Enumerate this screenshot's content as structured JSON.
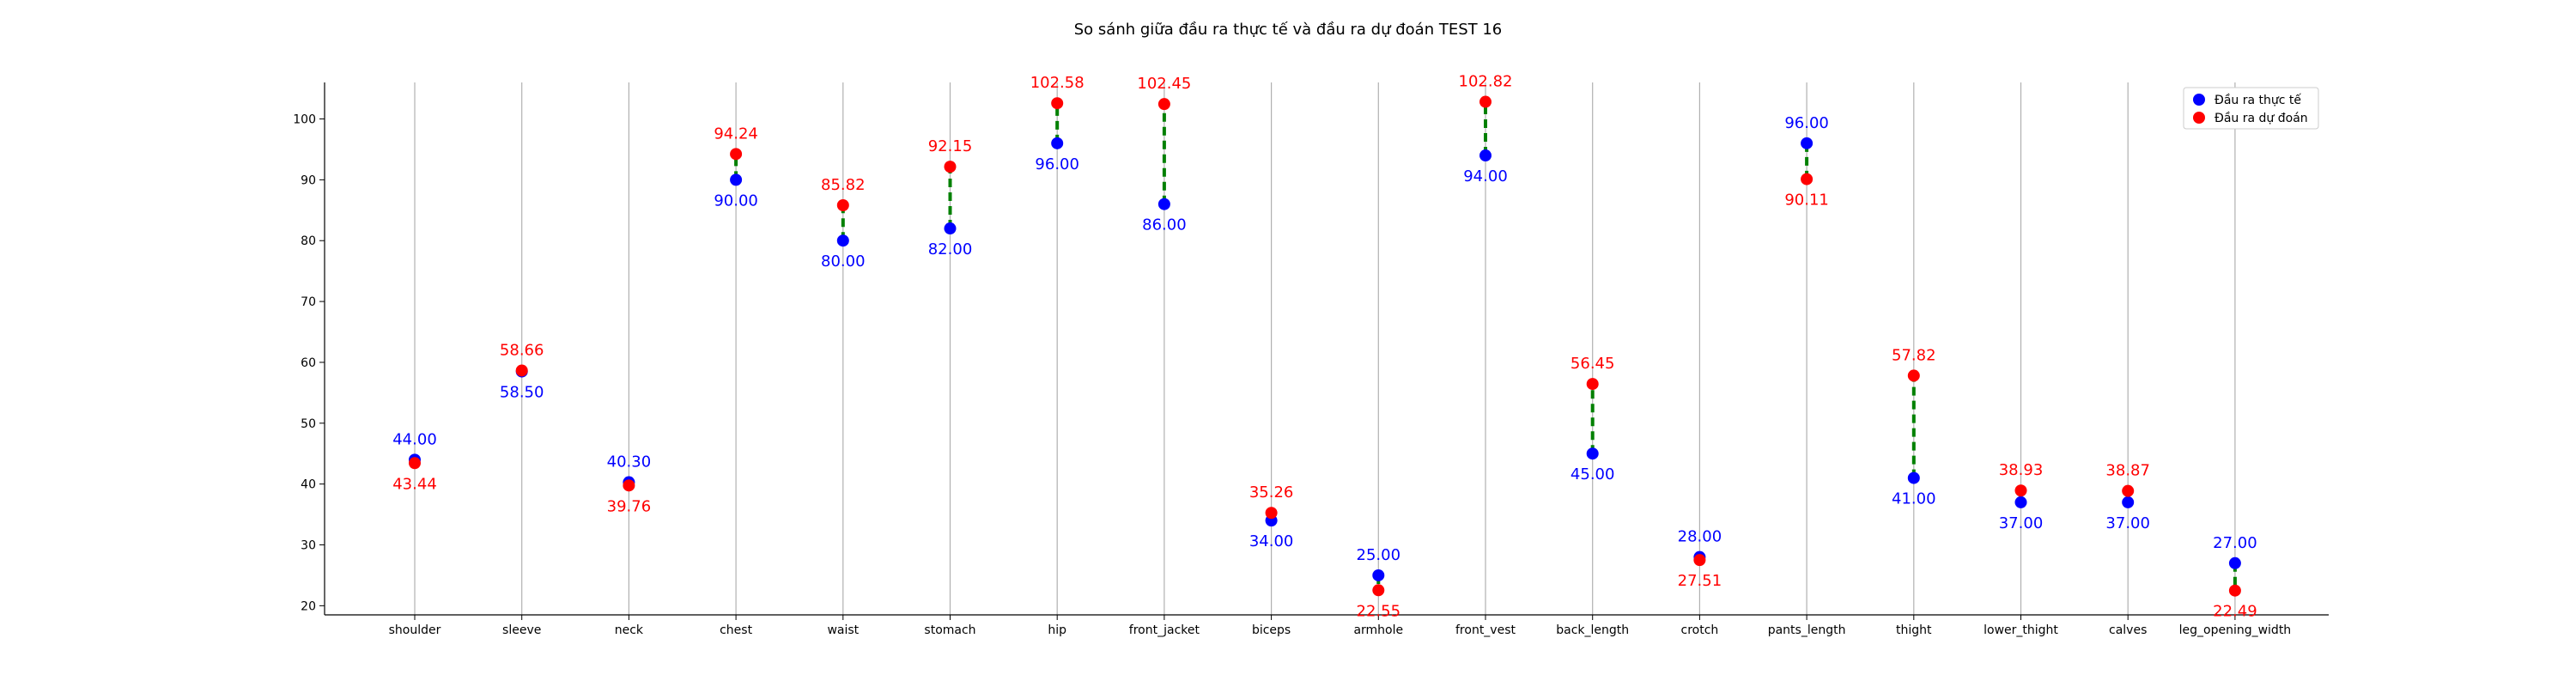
{
  "chart_data": {
    "type": "scatter",
    "title": "So sánh giữa đầu ra thực tế và đầu ra dự đoán TEST 16",
    "xlabel": "",
    "ylabel": "",
    "categories": [
      "shoulder",
      "sleeve",
      "neck",
      "chest",
      "waist",
      "stomach",
      "hip",
      "front_jacket",
      "biceps",
      "armhole",
      "front_vest",
      "back_length",
      "crotch",
      "pants_length",
      "thight",
      "lower_thight",
      "calves",
      "leg_opening_width"
    ],
    "ylim": [
      18.5,
      106
    ],
    "yticks": [
      20,
      30,
      40,
      50,
      60,
      70,
      80,
      90,
      100
    ],
    "grid": "vertical",
    "legend_position": "top-right",
    "series": [
      {
        "name": "Đầu ra thực tế",
        "color": "#0000ff",
        "values": [
          44.0,
          58.5,
          40.3,
          90.0,
          80.0,
          82.0,
          96.0,
          86.0,
          34.0,
          25.0,
          94.0,
          45.0,
          28.0,
          96.0,
          41.0,
          37.0,
          37.0,
          27.0
        ],
        "labels": [
          "44.00",
          "58.50",
          "40.30",
          "90.00",
          "80.00",
          "82.00",
          "96.00",
          "86.00",
          "34.00",
          "25.00",
          "94.00",
          "45.00",
          "28.00",
          "96.00",
          "41.00",
          "37.00",
          "37.00",
          "27.00"
        ]
      },
      {
        "name": "Đầu ra dự đoán",
        "color": "#ff0000",
        "values": [
          43.44,
          58.66,
          39.76,
          94.24,
          85.82,
          92.15,
          102.58,
          102.45,
          35.26,
          22.55,
          102.82,
          56.45,
          27.51,
          90.11,
          57.82,
          38.93,
          38.87,
          22.49
        ],
        "labels": [
          "43.44",
          "58.66",
          "39.76",
          "94.24",
          "85.82",
          "92.15",
          "102.58",
          "102.45",
          "35.26",
          "22.55",
          "102.82",
          "56.45",
          "27.51",
          "90.11",
          "57.82",
          "38.93",
          "38.87",
          "22.49"
        ]
      }
    ],
    "connector_color": "#008000"
  }
}
